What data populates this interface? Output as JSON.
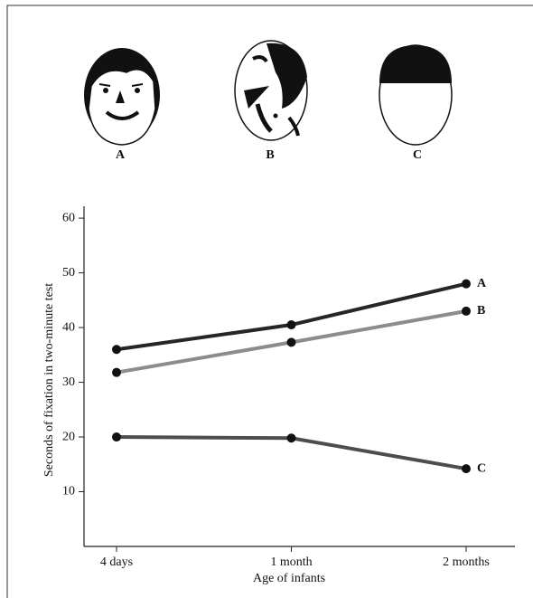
{
  "chart_data": {
    "type": "line",
    "figure_labels": [
      "A",
      "B",
      "C"
    ],
    "x_label": "Age of infants",
    "y_label": "Seconds of fixation in two-minute test",
    "categories": [
      "4 days",
      "1 month",
      "2 months"
    ],
    "series": [
      {
        "name": "A",
        "color": "#262626",
        "values": [
          36,
          40.5,
          48
        ]
      },
      {
        "name": "B",
        "color": "#8c8c8c",
        "values": [
          31.8,
          37.3,
          43
        ]
      },
      {
        "name": "C",
        "color": "#4d4d4d",
        "values": [
          20,
          19.8,
          14.2
        ]
      }
    ],
    "ylim": [
      0,
      62
    ],
    "yticks": [
      10,
      20,
      30,
      40,
      50,
      60
    ],
    "grid": false
  }
}
